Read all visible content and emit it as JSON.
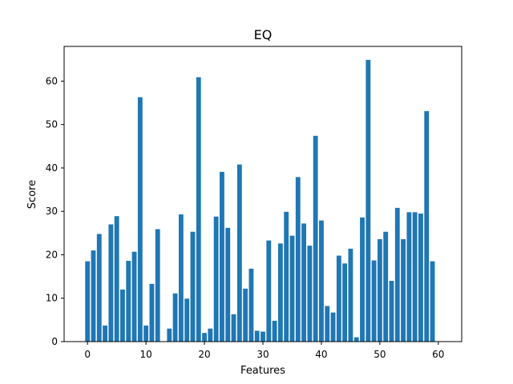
{
  "chart_data": {
    "type": "bar",
    "title": "EQ",
    "xlabel": "Features",
    "ylabel": "Score",
    "xlim": [
      -4,
      64
    ],
    "ylim": [
      0,
      68
    ],
    "xticks": [
      0,
      10,
      20,
      30,
      40,
      50,
      60
    ],
    "yticks": [
      0,
      10,
      20,
      30,
      40,
      50,
      60
    ],
    "grid": false,
    "bar_color": "#1f77b4",
    "x": [
      0,
      1,
      2,
      3,
      4,
      5,
      6,
      7,
      8,
      9,
      10,
      11,
      12,
      13,
      14,
      15,
      16,
      17,
      18,
      19,
      20,
      21,
      22,
      23,
      24,
      25,
      26,
      27,
      28,
      29,
      30,
      31,
      32,
      33,
      34,
      35,
      36,
      37,
      38,
      39,
      40,
      41,
      42,
      43,
      44,
      45,
      46,
      47,
      48,
      49,
      50,
      51,
      52,
      53,
      54,
      55,
      56,
      57,
      58,
      59
    ],
    "values": [
      18.5,
      21.0,
      24.8,
      3.7,
      27.0,
      28.9,
      12.0,
      18.6,
      20.7,
      56.3,
      3.7,
      13.3,
      25.9,
      0.0,
      3.0,
      11.1,
      29.3,
      9.9,
      25.3,
      60.9,
      2.0,
      3.0,
      28.8,
      39.1,
      26.2,
      6.3,
      40.8,
      12.2,
      16.8,
      2.5,
      2.3,
      23.3,
      4.8,
      22.6,
      29.9,
      24.4,
      37.9,
      27.2,
      22.1,
      47.4,
      27.9,
      8.2,
      6.7,
      19.8,
      18.0,
      21.4,
      1.0,
      28.6,
      64.9,
      18.7,
      23.6,
      25.3,
      14.0,
      30.8,
      23.6,
      29.8,
      29.8,
      29.5,
      53.1,
      18.5
    ]
  }
}
